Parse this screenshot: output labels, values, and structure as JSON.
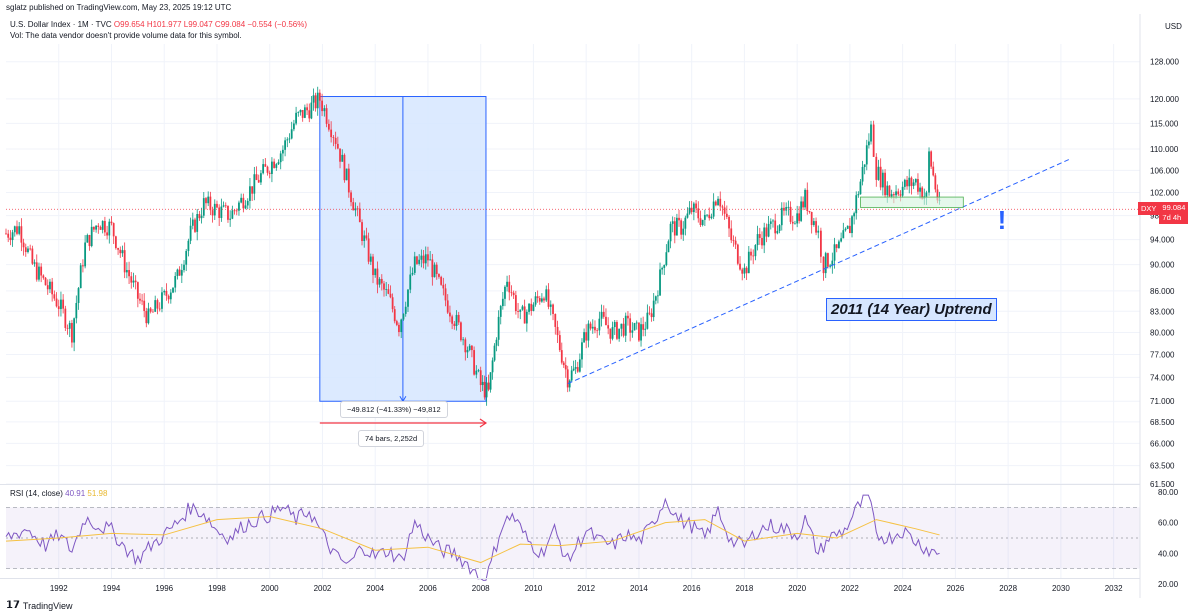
{
  "header": {
    "published": "sglatz published on TradingView.com, May 23, 2025 19:12 UTC",
    "symbol": "U.S. Dollar Index · 1M · TVC",
    "open": "O99.654",
    "high": "H101.977",
    "low": "L99.047",
    "close": "C99.084",
    "change": "−0.554 (−0.56%)",
    "vol_note": "Vol: The data vendor doesn't provide volume data for this symbol.",
    "currency": "USD"
  },
  "price_tag": {
    "symbol": "DXY",
    "price": "99.084",
    "countdown": "7d 4h"
  },
  "annotations": {
    "uptrend_label": "2011 (14 Year) Uptrend",
    "measure_change": "−49.812 (−41.33%) −49,812",
    "measure_bars": "74 bars, 2,252d",
    "exclamation": "!"
  },
  "rsi_legend": {
    "label": "RSI (14, close)",
    "value": "40.91",
    "ma": "51.98"
  },
  "footer": {
    "brand": "TradingView"
  },
  "colors": {
    "up": "#089981",
    "down": "#f23645",
    "rsi": "#7e57c2",
    "rsi_ma": "#f5c142",
    "trendline": "#2962ff",
    "measure_fill": "#d6e6ff"
  },
  "chart_data": [
    {
      "type": "line",
      "title": "",
      "series_style": "candlestick (monthly)",
      "x_ticks": [
        "1992",
        "1994",
        "1996",
        "1998",
        "2000",
        "2002",
        "2004",
        "2006",
        "2008",
        "2010",
        "2012",
        "2014",
        "2016",
        "2018",
        "2020",
        "2022",
        "2024",
        "2026",
        "2028",
        "2030",
        "2032"
      ],
      "y_ticks": [
        "128.000",
        "120.000",
        "115.000",
        "110.000",
        "106.000",
        "102.000",
        "98.000",
        "94.000",
        "90.000",
        "86.000",
        "83.000",
        "80.000",
        "77.000",
        "74.000",
        "71.000",
        "68.500",
        "66.000",
        "63.500",
        "61.500"
      ],
      "y_scale": "log",
      "ylim": [
        61.5,
        132
      ],
      "series": [
        {
          "x": [
            1990.0,
            1990.5,
            1991.0,
            1991.5,
            1992.0,
            1992.5,
            1993.0,
            1993.5,
            1994.0,
            1994.5,
            1995.0,
            1995.4,
            1996.0,
            1996.5,
            1997.0,
            1997.5,
            1998.0,
            1998.5,
            1999.0,
            1999.5,
            2000.0,
            2000.5,
            2001.0,
            2001.5,
            2001.9,
            2002.5,
            2003.0,
            2003.5,
            2004.0,
            2004.5,
            2004.9,
            2005.5,
            2006.0,
            2006.5,
            2007.0,
            2007.5,
            2008.0,
            2008.3,
            2008.6,
            2009.0,
            2009.5,
            2010.0,
            2010.4,
            2011.0,
            2011.3,
            2011.6,
            2012.0,
            2012.5,
            2013.0,
            2013.5,
            2014.0,
            2014.4,
            2014.8,
            2015.2,
            2015.6,
            2016.0,
            2016.5,
            2017.0,
            2017.5,
            2018.0,
            2018.5,
            2019.0,
            2019.5,
            2020.0,
            2020.3,
            2020.8,
            2021.0,
            2021.5,
            2022.0,
            2022.4,
            2022.8,
            2023.0,
            2023.5,
            2024.0,
            2024.5,
            2024.9,
            2025.0,
            2025.4
          ],
          "values": [
            95,
            96,
            90,
            87,
            84,
            80,
            93,
            97,
            96,
            90,
            85,
            82,
            85,
            88,
            95,
            100,
            99,
            98,
            101,
            104,
            107,
            110,
            116,
            118,
            120,
            112,
            103,
            95,
            88,
            85,
            81,
            90,
            91,
            86,
            82,
            78,
            73,
            72,
            80,
            88,
            82,
            84,
            86,
            78,
            74,
            75,
            80,
            82,
            80,
            81,
            80,
            82,
            88,
            96,
            96,
            99,
            97,
            102,
            94,
            89,
            94,
            96,
            98,
            98,
            101,
            95,
            90,
            92,
            96,
            104,
            114,
            106,
            102,
            103,
            104,
            101,
            109,
            99
          ]
        }
      ]
    },
    {
      "type": "line",
      "title": "",
      "series_style": "RSI",
      "y_ticks": [
        "80.00",
        "60.00",
        "40.00",
        "20.00"
      ],
      "ylim": [
        20,
        80
      ],
      "levels": [
        70,
        50,
        30
      ],
      "series": [
        {
          "name": "RSI (14, close)",
          "x": [
            1990.0,
            1990.8,
            1991.5,
            1992.0,
            1992.5,
            1993.0,
            1993.5,
            1994.0,
            1994.5,
            1995.0,
            1995.5,
            1996.0,
            1996.5,
            1997.0,
            1997.5,
            1998.0,
            1998.5,
            1999.0,
            1999.5,
            2000.0,
            2000.5,
            2001.0,
            2001.5,
            2002.0,
            2002.5,
            2003.0,
            2003.5,
            2004.0,
            2004.5,
            2005.0,
            2005.5,
            2006.0,
            2006.5,
            2007.0,
            2007.5,
            2008.0,
            2008.3,
            2008.8,
            2009.2,
            2009.8,
            2010.3,
            2010.8,
            2011.3,
            2012.0,
            2012.5,
            2013.0,
            2013.5,
            2014.0,
            2014.5,
            2015.0,
            2015.5,
            2016.0,
            2016.5,
            2017.0,
            2017.5,
            2018.0,
            2018.5,
            2019.0,
            2019.5,
            2020.0,
            2020.3,
            2020.8,
            2021.2,
            2021.8,
            2022.3,
            2022.7,
            2023.0,
            2023.5,
            2024.0,
            2024.5,
            2025.0,
            2025.4
          ],
          "values": [
            50,
            56,
            45,
            52,
            42,
            63,
            58,
            55,
            44,
            36,
            45,
            52,
            60,
            70,
            66,
            55,
            50,
            58,
            62,
            65,
            70,
            62,
            68,
            52,
            38,
            32,
            45,
            38,
            42,
            35,
            60,
            50,
            42,
            40,
            33,
            24,
            28,
            58,
            65,
            48,
            40,
            55,
            35,
            55,
            48,
            45,
            52,
            48,
            58,
            76,
            62,
            58,
            50,
            68,
            48,
            45,
            55,
            58,
            56,
            52,
            62,
            40,
            50,
            55,
            70,
            78,
            52,
            50,
            55,
            48,
            42,
            40
          ]
        },
        {
          "name": "MA",
          "x": [
            1990.0,
            1992.0,
            1994.0,
            1996.0,
            1998.0,
            2000.0,
            2002.0,
            2004.0,
            2006.0,
            2008.0,
            2009.5,
            2011.0,
            2013.0,
            2015.0,
            2016.5,
            2018.0,
            2020.0,
            2021.5,
            2023.0,
            2024.5,
            2025.4
          ],
          "values": [
            48,
            50,
            53,
            52,
            62,
            64,
            56,
            42,
            44,
            34,
            46,
            45,
            48,
            60,
            62,
            48,
            53,
            50,
            62,
            56,
            52
          ]
        }
      ]
    }
  ]
}
